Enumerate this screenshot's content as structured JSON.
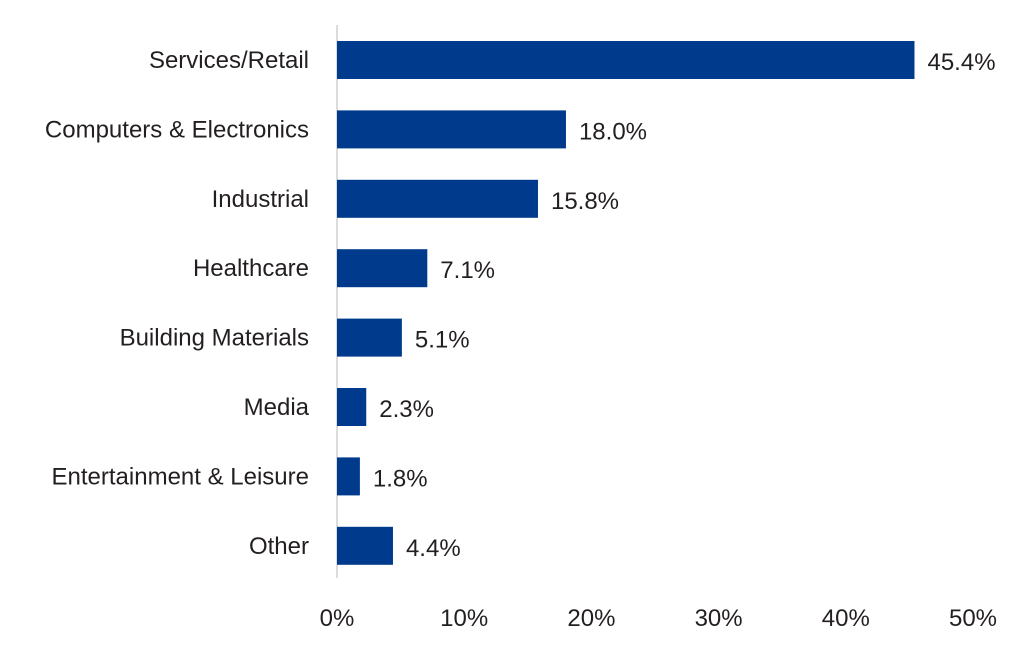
{
  "chart_data": {
    "type": "bar",
    "orientation": "horizontal",
    "categories": [
      "Services/Retail",
      "Computers & Electronics",
      "Industrial",
      "Healthcare",
      "Building Materials",
      "Media",
      "Entertainment & Leisure",
      "Other"
    ],
    "values": [
      45.4,
      18.0,
      15.8,
      7.1,
      5.1,
      2.3,
      1.8,
      4.4
    ],
    "data_labels": [
      "45.4%",
      "18.0%",
      "15.8%",
      "7.1%",
      "5.1%",
      "2.3%",
      "1.8%",
      "4.4%"
    ],
    "x_ticks": [
      0,
      10,
      20,
      30,
      40,
      50
    ],
    "x_tick_labels": [
      "0%",
      "10%",
      "20%",
      "30%",
      "40%",
      "50%"
    ],
    "xlim": [
      0,
      50
    ],
    "title": "",
    "xlabel": "",
    "ylabel": "",
    "grid": false,
    "legend": "none",
    "bar_color": "#003a8c",
    "axis_color": "#d0d0d0",
    "text_color": "#231f20"
  }
}
